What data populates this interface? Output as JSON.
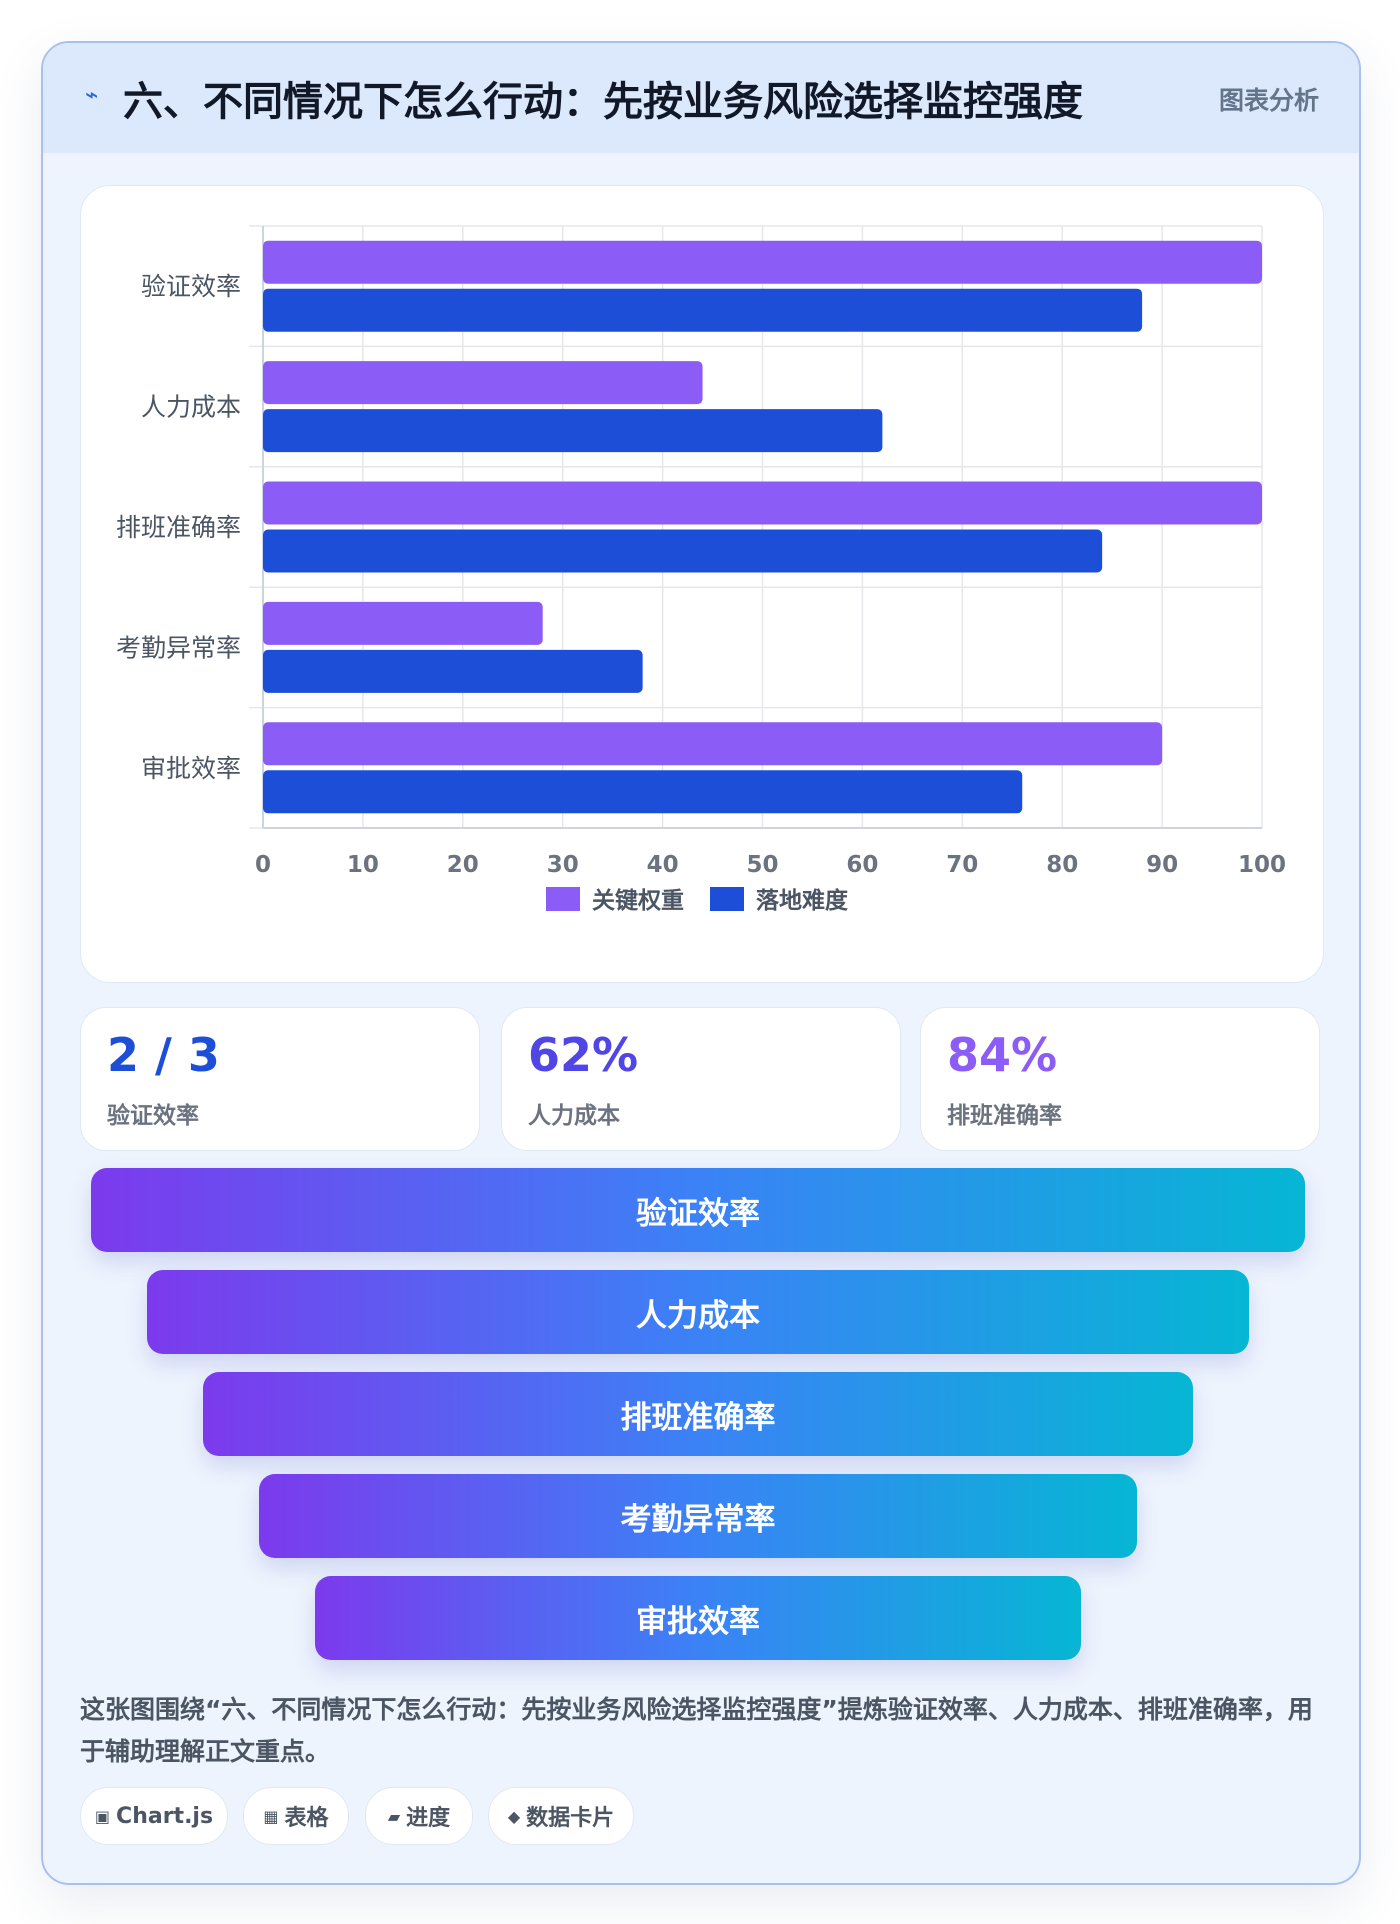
{
  "header": {
    "icon": "lightning-icon",
    "title": "六、不同情况下怎么行动：先按业务风险选择监控强度",
    "tag": "图表分析"
  },
  "chart_data": {
    "type": "bar",
    "orientation": "horizontal",
    "categories": [
      "验证效率",
      "人力成本",
      "排班准确率",
      "考勤异常率",
      "审批效率"
    ],
    "series": [
      {
        "name": "关键权重",
        "color": "#8b5cf6",
        "values": [
          100,
          44,
          100,
          28,
          90
        ]
      },
      {
        "name": "落地难度",
        "color": "#1d4ed8",
        "values": [
          88,
          62,
          84,
          38,
          76
        ]
      }
    ],
    "xlim": [
      0,
      100
    ],
    "xticks": [
      0,
      10,
      20,
      30,
      40,
      50,
      60,
      70,
      80,
      90,
      100
    ],
    "grid": true,
    "legend_position": "bottom"
  },
  "kpis": [
    {
      "value": "2 / 3",
      "label": "验证效率",
      "color": "#1d4ed8"
    },
    {
      "value": "62%",
      "label": "人力成本",
      "color": "#4f46e5"
    },
    {
      "value": "84%",
      "label": "排班准确率",
      "color": "#8b5cf6"
    }
  ],
  "funnel": [
    "验证效率",
    "人力成本",
    "排班准确率",
    "考勤异常率",
    "审批效率"
  ],
  "caption": "这张图围绕“六、不同情况下怎么行动：先按业务风险选择监控强度”提炼验证效率、人力成本、排班准确率，用于辅助理解正文重点。",
  "chips": [
    {
      "icon": "chip-icon",
      "glyph": "▣",
      "label": "Chart.js"
    },
    {
      "icon": "grid-icon",
      "glyph": "▦",
      "label": "表格"
    },
    {
      "icon": "progress-icon",
      "glyph": "▰",
      "label": "进度"
    },
    {
      "icon": "diamond-icon",
      "glyph": "◆",
      "label": "数据卡片"
    }
  ]
}
